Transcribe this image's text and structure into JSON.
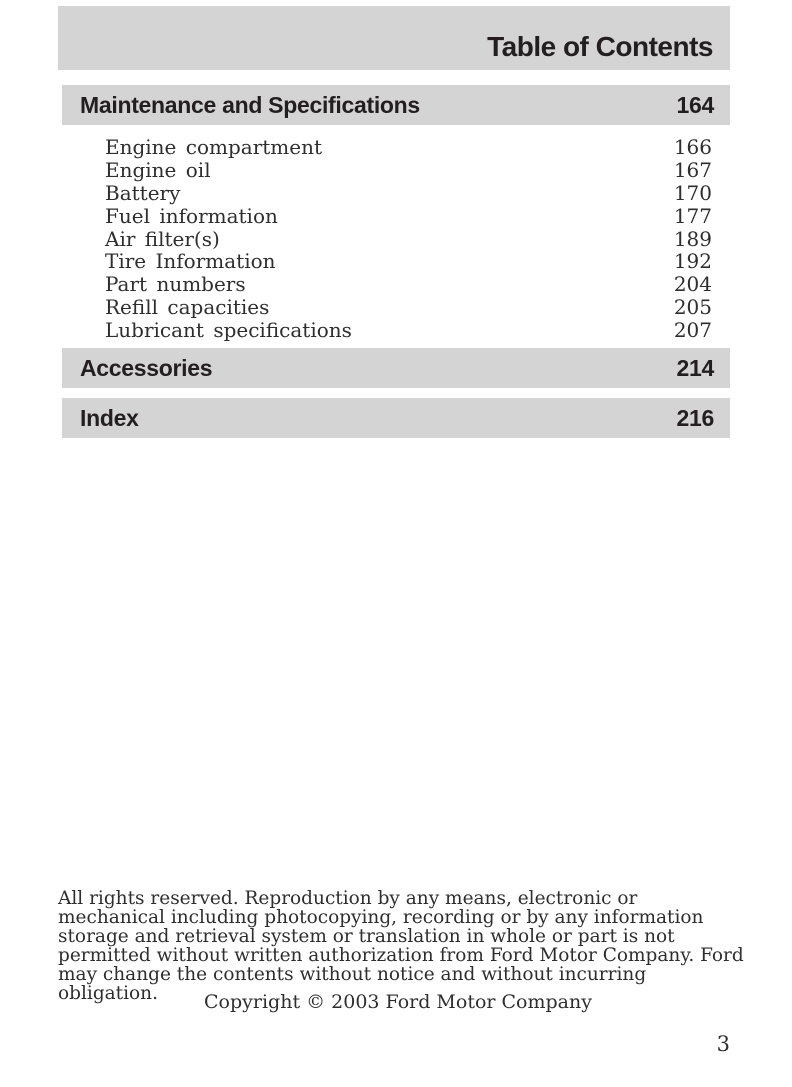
{
  "colors": {
    "bar_bg": "#d4d4d4",
    "heading_color": "#231f20",
    "body_color": "#2e2e2e",
    "page_bg": "#ffffff"
  },
  "header": {
    "title": "Table of Contents"
  },
  "sections": [
    {
      "title": "Maintenance and Specifications",
      "page": "164",
      "entries": [
        {
          "label": "Engine compartment",
          "page": "166"
        },
        {
          "label": "Engine oil",
          "page": "167"
        },
        {
          "label": "Battery",
          "page": "170"
        },
        {
          "label": "Fuel information",
          "page": "177"
        },
        {
          "label": "Air filter(s)",
          "page": "189"
        },
        {
          "label": "Tire Information",
          "page": "192"
        },
        {
          "label": "Part numbers",
          "page": "204"
        },
        {
          "label": "Refill capacities",
          "page": "205"
        },
        {
          "label": "Lubricant specifications",
          "page": "207"
        }
      ]
    },
    {
      "title": "Accessories",
      "page": "214",
      "entries": []
    },
    {
      "title": "Index",
      "page": "216",
      "entries": []
    }
  ],
  "footer": {
    "notice": "All rights reserved. Reproduction by any means, electronic or mechanical including photocopying, recording or by any information storage and retrieval system or translation in whole or part is not permitted without written authorization from Ford Motor Company. Ford may change the contents without notice and without incurring obligation.",
    "copyright_line": "Copyright © 2003 Ford Motor Company",
    "page_number": "3"
  }
}
